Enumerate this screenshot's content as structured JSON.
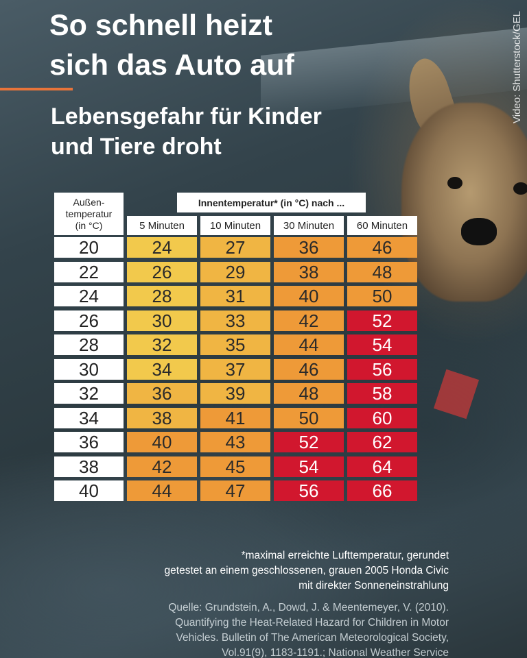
{
  "title_lines": [
    "So schnell heizt",
    "sich das Auto auf"
  ],
  "subtitle_lines": [
    "Lebensgefahr für Kinder",
    "und Tiere droht"
  ],
  "credit": "Video: Shutterstock/GEL",
  "colors": {
    "accent": "#e8743a",
    "yellow": "#f2c94c",
    "light_orange": "#f0b543",
    "orange": "#ee9a38",
    "red": "#d1172e"
  },
  "table": {
    "row_header_lines": [
      "Außen-",
      "temperatur",
      "(in °C)"
    ],
    "group_header": "Innentemperatur* (in °C) nach ...",
    "columns": [
      "5 Minuten",
      "10 Minuten",
      "30 Minuten",
      "60 Minuten"
    ],
    "rows": [
      {
        "outside": "20",
        "values": [
          "24",
          "27",
          "36",
          "46"
        ],
        "levels": [
          "yellow",
          "light_orange",
          "orange",
          "orange"
        ]
      },
      {
        "outside": "22",
        "values": [
          "26",
          "29",
          "38",
          "48"
        ],
        "levels": [
          "yellow",
          "light_orange",
          "orange",
          "orange"
        ]
      },
      {
        "outside": "24",
        "values": [
          "28",
          "31",
          "40",
          "50"
        ],
        "levels": [
          "yellow",
          "light_orange",
          "orange",
          "orange"
        ]
      },
      {
        "outside": "26",
        "values": [
          "30",
          "33",
          "42",
          "52"
        ],
        "levels": [
          "yellow",
          "light_orange",
          "orange",
          "red"
        ]
      },
      {
        "outside": "28",
        "values": [
          "32",
          "35",
          "44",
          "54"
        ],
        "levels": [
          "yellow",
          "light_orange",
          "orange",
          "red"
        ]
      },
      {
        "outside": "30",
        "values": [
          "34",
          "37",
          "46",
          "56"
        ],
        "levels": [
          "yellow",
          "light_orange",
          "orange",
          "red"
        ]
      },
      {
        "outside": "32",
        "values": [
          "36",
          "39",
          "48",
          "58"
        ],
        "levels": [
          "light_orange",
          "light_orange",
          "orange",
          "red"
        ]
      },
      {
        "outside": "34",
        "values": [
          "38",
          "41",
          "50",
          "60"
        ],
        "levels": [
          "light_orange",
          "orange",
          "orange",
          "red"
        ]
      },
      {
        "outside": "36",
        "values": [
          "40",
          "43",
          "52",
          "62"
        ],
        "levels": [
          "orange",
          "orange",
          "red",
          "red"
        ]
      },
      {
        "outside": "38",
        "values": [
          "42",
          "45",
          "54",
          "64"
        ],
        "levels": [
          "orange",
          "orange",
          "red",
          "red"
        ]
      },
      {
        "outside": "40",
        "values": [
          "44",
          "47",
          "56",
          "66"
        ],
        "levels": [
          "orange",
          "orange",
          "red",
          "red"
        ]
      }
    ]
  },
  "footnote_lines": [
    "*maximal erreichte Lufttemperatur, gerundet",
    "getestet an einem geschlossenen, grauen 2005 Honda Civic",
    "mit direkter Sonneneinstrahlung"
  ],
  "source_lines": [
    "Quelle: Grundstein, A., Dowd, J. & Meentemeyer, V. (2010).",
    "Quantifying the Heat-Related Hazard for Children in Motor",
    "Vehicles. Bulletin of The American Meteorological Society,",
    "Vol.91(9), 1183-1191.; National Weather Service"
  ]
}
